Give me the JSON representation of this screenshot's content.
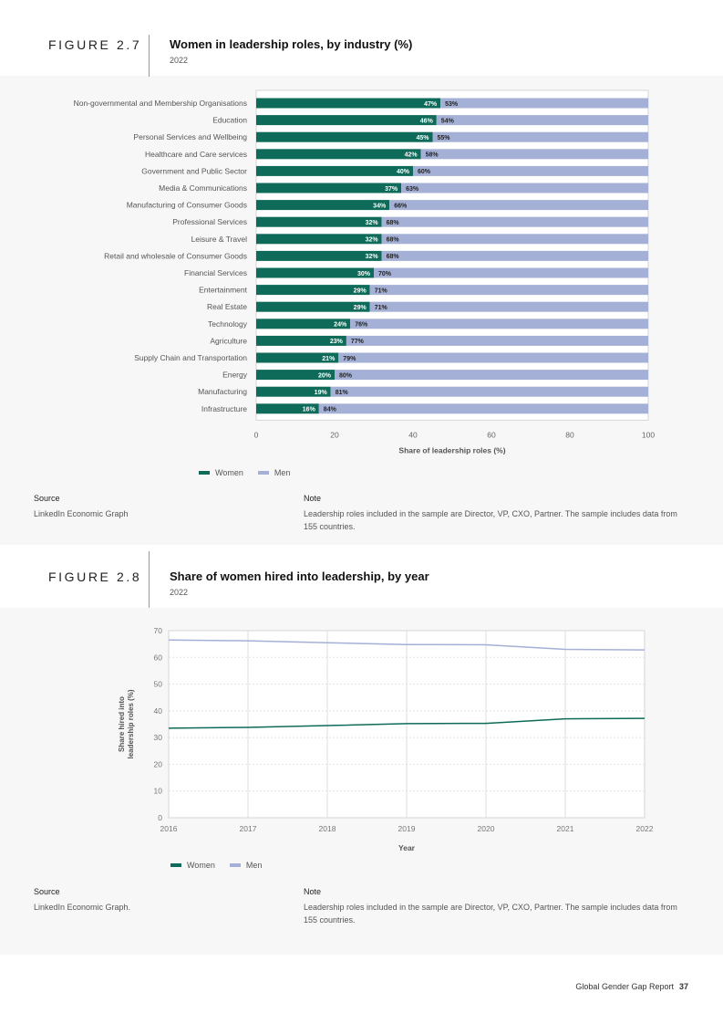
{
  "figure1": {
    "number": "FIGURE 2.7",
    "title": "Women in leadership roles, by industry (%)",
    "year": "2022",
    "source_label": "Source",
    "source_text": "LinkedIn Economic Graph",
    "note_label": "Note",
    "note_text": "Leadership roles included in the sample are Director, VP, CXO, Partner. The sample includes data from 155 countries."
  },
  "figure2": {
    "number": "FIGURE 2.8",
    "title": "Share of women hired into leadership, by year",
    "year": "2022",
    "source_label": "Source",
    "source_text": "LinkedIn Economic Graph.",
    "note_label": "Note",
    "note_text": "Leadership roles included in the sample are Director, VP, CXO, Partner. The sample includes data from 155 countries."
  },
  "footer": {
    "report": "Global Gender Gap Report",
    "page": "37"
  },
  "colors": {
    "women": "#0e6b5a",
    "men": "#a5b0d6"
  },
  "chart_data": [
    {
      "type": "bar",
      "orientation": "horizontal",
      "stacked": true,
      "categories": [
        "Non-governmental and Membership Organisations",
        "Education",
        "Personal Services and Wellbeing",
        "Healthcare and Care services",
        "Government and Public Sector",
        "Media & Communications",
        "Manufacturing of Consumer Goods",
        "Professional Services",
        "Leisure & Travel",
        "Retail and wholesale of Consumer Goods",
        "Financial Services",
        "Entertainment",
        "Real Estate",
        "Technology",
        "Agriculture",
        "Supply Chain and Transportation",
        "Energy",
        "Manufacturing",
        "Infrastructure"
      ],
      "series": [
        {
          "name": "Women",
          "values": [
            47,
            46,
            45,
            42,
            40,
            37,
            34,
            32,
            32,
            32,
            30,
            29,
            29,
            24,
            23,
            21,
            20,
            19,
            16
          ]
        },
        {
          "name": "Men",
          "values": [
            53,
            54,
            55,
            58,
            60,
            63,
            66,
            68,
            68,
            68,
            70,
            71,
            71,
            76,
            77,
            79,
            80,
            81,
            84
          ]
        }
      ],
      "data_labels": [
        [
          "47%",
          "46%",
          "45%",
          "42%",
          "40%",
          "37%",
          "34%",
          "32%",
          "32%",
          "32%",
          "30%",
          "29%",
          "29%",
          "24%",
          "23%",
          "21%",
          "20%",
          "19%",
          "16%"
        ],
        [
          "53%",
          "54%",
          "55%",
          "58%",
          "60%",
          "63%",
          "66%",
          "68%",
          "68%",
          "68%",
          "70%",
          "71%",
          "71%",
          "76%",
          "77%",
          "79%",
          "80%",
          "81%",
          "84%"
        ]
      ],
      "xlabel": "Share of leadership roles (%)",
      "xlim": [
        0,
        100
      ],
      "xticks": [
        "0",
        "20",
        "40",
        "60",
        "80",
        "100"
      ],
      "legend": "bottom"
    },
    {
      "type": "line",
      "x": [
        2016,
        2017,
        2018,
        2019,
        2020,
        2021,
        2022
      ],
      "xticks": [
        "2016",
        "2017",
        "2018",
        "2019",
        "2020",
        "2021",
        "2022"
      ],
      "series": [
        {
          "name": "Women",
          "values": [
            33.5,
            33.8,
            34.5,
            35.2,
            35.3,
            37.0,
            37.2
          ]
        },
        {
          "name": "Men",
          "values": [
            66.5,
            66.2,
            65.5,
            64.8,
            64.7,
            63.0,
            62.8
          ]
        }
      ],
      "xlabel": "Year",
      "ylabel": "Share hired into leadership roles (%)",
      "ylim": [
        0,
        70
      ],
      "yticks": [
        "0",
        "10",
        "20",
        "30",
        "40",
        "50",
        "60",
        "70"
      ],
      "grid": true,
      "legend": "bottom"
    }
  ]
}
